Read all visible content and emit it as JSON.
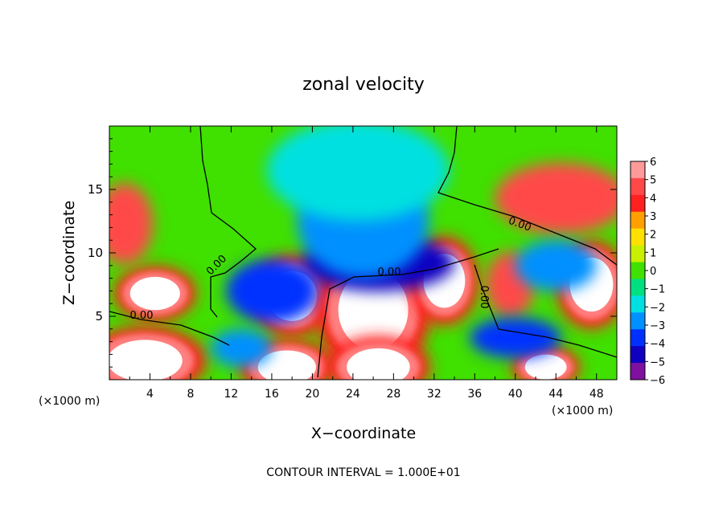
{
  "chart_data": {
    "type": "heatmap",
    "title": "zonal velocity",
    "xlabel": "X−coordinate",
    "ylabel": "Z−coordinate",
    "x_unit_left": "(×1000 m)",
    "x_unit_right": "(×1000 m)",
    "footer": "CONTOUR INTERVAL = 1.000E+01",
    "xlim": [
      0,
      50
    ],
    "ylim": [
      0,
      20
    ],
    "x_ticks": [
      4,
      8,
      12,
      16,
      20,
      24,
      28,
      32,
      36,
      40,
      44,
      48
    ],
    "x_tick_labels": [
      "4",
      "8",
      "12",
      "16",
      "20",
      "24",
      "28",
      "32",
      "36",
      "40",
      "44",
      "48"
    ],
    "y_ticks": [
      5,
      10,
      15
    ],
    "y_tick_labels": [
      "5",
      "10",
      "15"
    ],
    "colorbar": {
      "levels": [
        6,
        5,
        4,
        3,
        2,
        1,
        0,
        -1,
        -2,
        -3,
        -4,
        -5,
        -6
      ],
      "labels": [
        "6",
        "5",
        "4",
        "3",
        "2",
        "1",
        "0",
        "−1",
        "−2",
        "−3",
        "−4",
        "−5",
        "−6"
      ],
      "colors": [
        "#ff9a9a",
        "#ff4848",
        "#ff2020",
        "#ffa000",
        "#ffe000",
        "#c8f000",
        "#40e000",
        "#00e080",
        "#00e0e0",
        "#0090ff",
        "#0030ff",
        "#1000c0",
        "#8010a0"
      ]
    },
    "contour_labels": [
      "0.00",
      "0.00",
      "0.00",
      "0.00",
      "0.00"
    ],
    "blobs": [
      {
        "x": 3.5,
        "z": 1.5,
        "rx": 4.5,
        "rz": 2.0,
        "v": 7
      },
      {
        "x": 4.5,
        "z": 6.8,
        "rx": 3.0,
        "rz": 1.6,
        "v": 7
      },
      {
        "x": 18.0,
        "z": 6.6,
        "rx": 3.0,
        "rz": 2.4,
        "v": 7
      },
      {
        "x": 26.0,
        "z": 5.5,
        "rx": 4.2,
        "rz": 3.8,
        "v": 7
      },
      {
        "x": 33.0,
        "z": 7.8,
        "rx": 2.5,
        "rz": 2.6,
        "v": 7
      },
      {
        "x": 47.5,
        "z": 7.5,
        "rx": 2.6,
        "rz": 2.6,
        "v": 7
      },
      {
        "x": 17.5,
        "z": 1.0,
        "rx": 3.5,
        "rz": 1.6,
        "v": 7
      },
      {
        "x": 26.5,
        "z": 1.0,
        "rx": 3.8,
        "rz": 1.8,
        "v": 7
      },
      {
        "x": 43.0,
        "z": 1.0,
        "rx": 2.5,
        "rz": 1.2,
        "v": 7
      },
      {
        "x": 39.5,
        "z": 7.5,
        "rx": 2.4,
        "rz": 2.6,
        "v": 5
      },
      {
        "x": 1.5,
        "z": 12.3,
        "rx": 2.8,
        "rz": 3.2,
        "v": 4.5
      },
      {
        "x": 44.5,
        "z": 14.3,
        "rx": 6.5,
        "rz": 2.8,
        "v": 4.5
      },
      {
        "x": 26.5,
        "z": 9.2,
        "rx": 7.5,
        "rz": 2.2,
        "v": -5
      },
      {
        "x": 25.0,
        "z": 12.5,
        "rx": 6.5,
        "rz": 4.5,
        "v": -3.5
      },
      {
        "x": 16.0,
        "z": 7.0,
        "rx": 4.5,
        "rz": 2.5,
        "v": -4
      },
      {
        "x": 13.0,
        "z": 2.5,
        "rx": 3.0,
        "rz": 1.5,
        "v": -3.5
      },
      {
        "x": 40.0,
        "z": 3.3,
        "rx": 4.5,
        "rz": 1.6,
        "v": -4
      },
      {
        "x": 44.0,
        "z": 9.0,
        "rx": 4.0,
        "rz": 2.0,
        "v": -3.5
      },
      {
        "x": 24.5,
        "z": 16.5,
        "rx": 9.0,
        "rz": 4.0,
        "v": -2.0
      }
    ]
  }
}
